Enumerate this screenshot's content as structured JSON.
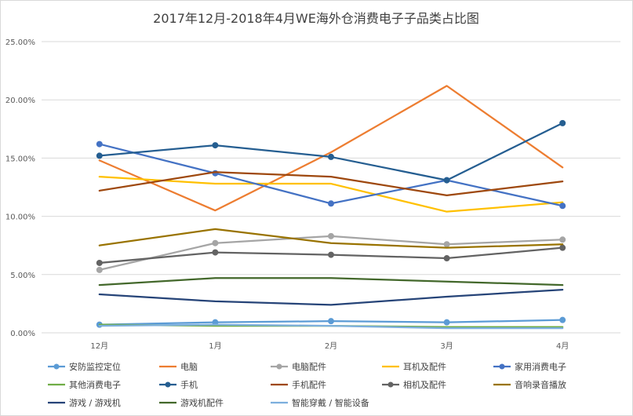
{
  "chart_data": {
    "type": "line",
    "title": "2017年12月-2018年4月WE海外仓消费电子子品类占比图",
    "xlabel": "",
    "ylabel": "",
    "categories": [
      "12月",
      "1月",
      "2月",
      "3月",
      "4月"
    ],
    "ylim": [
      0,
      0.25
    ],
    "yticks": [
      "0.00%",
      "5.00%",
      "10.00%",
      "15.00%",
      "20.00%",
      "25.00%"
    ],
    "grid": true,
    "legend_position": "bottom",
    "series": [
      {
        "name": "安防监控定位",
        "color": "#5b9bd5",
        "marker": true,
        "values": [
          0.007,
          0.009,
          0.01,
          0.009,
          0.011
        ]
      },
      {
        "name": "电脑",
        "color": "#ed7d31",
        "marker": false,
        "values": [
          0.148,
          0.105,
          0.155,
          0.212,
          0.142
        ]
      },
      {
        "name": "电脑配件",
        "color": "#a5a5a5",
        "marker": true,
        "values": [
          0.054,
          0.077,
          0.083,
          0.076,
          0.08
        ]
      },
      {
        "name": "耳机及配件",
        "color": "#ffc000",
        "marker": false,
        "values": [
          0.134,
          0.128,
          0.128,
          0.104,
          0.112
        ]
      },
      {
        "name": "家用消费电子",
        "color": "#4472c4",
        "marker": true,
        "values": [
          0.162,
          0.137,
          0.111,
          0.131,
          0.109
        ]
      },
      {
        "name": "其他消费电子",
        "color": "#70ad47",
        "marker": false,
        "values": [
          0.007,
          0.006,
          0.006,
          0.005,
          0.005
        ]
      },
      {
        "name": "手机",
        "color": "#255e91",
        "marker": true,
        "values": [
          0.152,
          0.161,
          0.151,
          0.131,
          0.18
        ]
      },
      {
        "name": "手机配件",
        "color": "#9e480e",
        "marker": false,
        "values": [
          0.122,
          0.138,
          0.134,
          0.118,
          0.13
        ]
      },
      {
        "name": "相机及配件",
        "color": "#636363",
        "marker": true,
        "values": [
          0.06,
          0.069,
          0.067,
          0.064,
          0.073
        ]
      },
      {
        "name": "音响录音播放",
        "color": "#997300",
        "marker": false,
        "values": [
          0.075,
          0.089,
          0.077,
          0.073,
          0.076
        ]
      },
      {
        "name": "游戏 / 游戏机",
        "color": "#264478",
        "marker": false,
        "values": [
          0.033,
          0.027,
          0.024,
          0.031,
          0.037
        ]
      },
      {
        "name": "游戏机配件",
        "color": "#43682b",
        "marker": false,
        "values": [
          0.041,
          0.047,
          0.047,
          0.044,
          0.041
        ]
      },
      {
        "name": "智能穿戴 / 智能设备",
        "color": "#7cafdd",
        "marker": false,
        "values": [
          0.006,
          0.007,
          0.006,
          0.004,
          0.004
        ]
      }
    ]
  }
}
